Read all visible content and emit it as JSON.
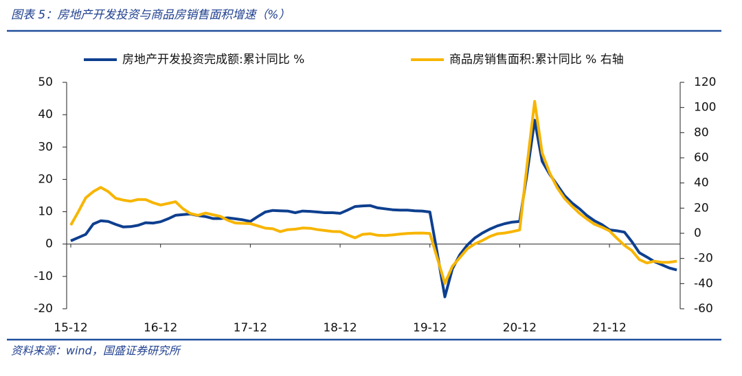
{
  "chart_data": {
    "type": "line",
    "title": "图表 5：房地产开发投资与商品房销售面积增速（%）",
    "source": "资料来源：wind，国盛证券研究所",
    "categories": [
      "15-12",
      null,
      null,
      null,
      null,
      null,
      null,
      null,
      null,
      null,
      null,
      null,
      "16-12",
      null,
      null,
      null,
      null,
      null,
      null,
      null,
      null,
      null,
      null,
      null,
      "17-12",
      null,
      null,
      null,
      null,
      null,
      null,
      null,
      null,
      null,
      null,
      null,
      "18-12",
      null,
      null,
      null,
      null,
      null,
      null,
      null,
      null,
      null,
      null,
      null,
      "19-12",
      null,
      null,
      null,
      null,
      null,
      null,
      null,
      null,
      null,
      null,
      null,
      "20-12",
      null,
      null,
      null,
      null,
      null,
      null,
      null,
      null,
      null,
      null,
      null,
      "21-12",
      null,
      null,
      null,
      null,
      null,
      null,
      null,
      null,
      null
    ],
    "series": [
      {
        "name": "房地产开发投资完成额:累计同比 %",
        "color": "#0e3f8f",
        "axis": "y",
        "values": [
          1.0,
          2.0,
          3.0,
          6.2,
          7.2,
          7.0,
          6.1,
          5.3,
          5.4,
          5.8,
          6.6,
          6.5,
          6.9,
          7.8,
          8.9,
          9.1,
          9.3,
          8.8,
          8.5,
          7.9,
          7.9,
          8.1,
          7.8,
          7.5,
          7.0,
          8.5,
          9.9,
          10.4,
          10.3,
          10.2,
          9.7,
          10.2,
          10.1,
          9.9,
          9.7,
          9.7,
          9.5,
          10.5,
          11.6,
          11.8,
          11.9,
          11.2,
          10.9,
          10.6,
          10.5,
          10.5,
          10.3,
          10.2,
          9.9,
          -3,
          -16.3,
          -7.7,
          -3.3,
          -0.3,
          1.9,
          3.4,
          4.6,
          5.6,
          6.3,
          6.8,
          7.0,
          22,
          38.3,
          25.6,
          21.6,
          18.3,
          15.0,
          12.7,
          10.9,
          8.8,
          7.2,
          6.0,
          4.4,
          4.1,
          3.7,
          0.7,
          -2.7,
          -4.0,
          -5.4,
          -6.4,
          -7.4,
          -8.0
        ]
      },
      {
        "name": "商品房销售面积:累计同比 % 右轴",
        "color": "#f7b500",
        "axis": "y2",
        "values": [
          6.5,
          17,
          28.2,
          33.1,
          36.5,
          33.2,
          27.9,
          26.4,
          25.5,
          26.9,
          26.8,
          24.3,
          22.5,
          23.7,
          25.1,
          19.5,
          15.7,
          14.3,
          16.1,
          14.7,
          13.5,
          10.3,
          8.2,
          7.9,
          7.7,
          5.9,
          4.1,
          3.6,
          1.3,
          2.9,
          3.3,
          4.2,
          4.0,
          2.9,
          2.2,
          1.4,
          1.3,
          -1.3,
          -3.6,
          -0.9,
          -0.3,
          -1.6,
          -1.8,
          -1.3,
          -0.6,
          -0.1,
          0.1,
          0.2,
          -0.1,
          -20,
          -39.9,
          -26.3,
          -19.3,
          -12.3,
          -8.4,
          -5.8,
          -2.6,
          -0.4,
          0.2,
          1.3,
          2.6,
          55,
          104.9,
          63.8,
          48.1,
          36.3,
          27.7,
          21.5,
          15.9,
          11.3,
          7.2,
          4.8,
          1.9,
          -4,
          -9.6,
          -13.8,
          -20.9,
          -23.6,
          -22.2,
          -23.1,
          -23.0,
          -22.2
        ]
      }
    ],
    "ylim": [
      -20,
      50
    ],
    "yticks": [
      -20,
      -10,
      0,
      10,
      20,
      30,
      40,
      50
    ],
    "y2lim": [
      -60,
      120
    ],
    "y2ticks": [
      -60,
      -40,
      -20,
      0,
      20,
      40,
      60,
      80,
      100,
      120
    ],
    "legend": "top"
  }
}
